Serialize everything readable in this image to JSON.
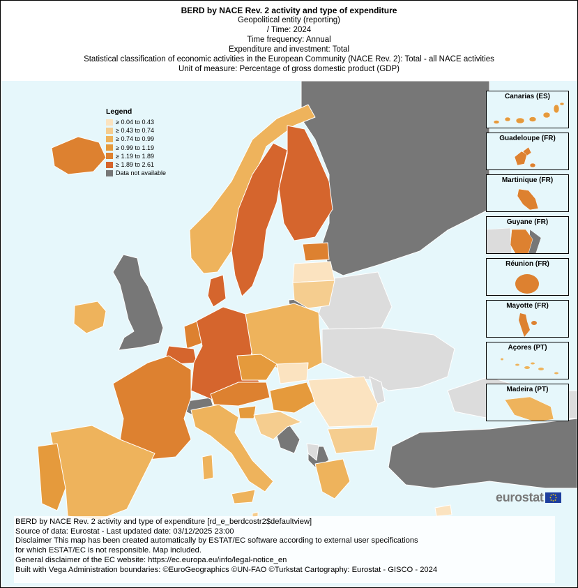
{
  "header": {
    "title": "BERD by NACE Rev. 2 activity and type of expenditure",
    "lines": [
      "Geopolitical entity (reporting)",
      "/ Time:  2024",
      "Time frequency:  Annual",
      "Expenditure and investment:  Total",
      "Statistical classification of economic activities in the European Community (NACE Rev. 2):  Total - all NACE activities",
      "Unit of measure:  Percentage of gross domestic product (GDP)"
    ]
  },
  "legend": {
    "title": "Legend",
    "items": [
      {
        "label": "≥ 0.04 to 0.43",
        "color": "#fbe3c0"
      },
      {
        "label": "≥ 0.43 to 0.74",
        "color": "#f5cd8f"
      },
      {
        "label": "≥ 0.74 to 0.99",
        "color": "#eeb35c"
      },
      {
        "label": "≥ 0.99 to 1.19",
        "color": "#e59a3c"
      },
      {
        "label": "≥ 1.19 to 1.89",
        "color": "#dd8130"
      },
      {
        "label": "≥ 1.89 to 2.61",
        "color": "#d5652d"
      },
      {
        "label": "Data not available",
        "color": "#777777"
      }
    ]
  },
  "map_colors": {
    "sea": "#e6f7fb",
    "non_eu": "#dcdcdc",
    "no_data": "#777777",
    "border": "#ffffff"
  },
  "insets": [
    {
      "label": "Canarias (ES)",
      "color": "#e59a3c"
    },
    {
      "label": "Guadeloupe (FR)",
      "color": "#dd8130"
    },
    {
      "label": "Martinique (FR)",
      "color": "#dd8130"
    },
    {
      "label": "Guyane (FR)",
      "color": "#dd8130"
    },
    {
      "label": "Réunion (FR)",
      "color": "#dd8130"
    },
    {
      "label": "Mayotte (FR)",
      "color": "#dd8130"
    },
    {
      "label": "Açores (PT)",
      "color": "#eeb35c"
    },
    {
      "label": "Madeira (PT)",
      "color": "#eeb35c"
    }
  ],
  "logo": {
    "text": "eurostat"
  },
  "footer": {
    "lines": [
      "BERD by NACE Rev. 2 activity and type of expenditure [rd_e_berdcostr2$defaultview]",
      "Source of data: Eurostat - Last updated date: 03/12/2025 23:00",
      "Disclaimer This map has been created automatically by ESTAT/EC software according to external user specifications",
      "for which ESTAT/EC is not responsible. Map included.",
      "General disclaimer of the EC website: https://ec.europa.eu/info/legal-notice_en",
      "Built with Vega Administration boundaries: ©EuroGeographics ©UN-FAO ©Turkstat Cartography: Eurostat - GISCO - 2024"
    ]
  }
}
